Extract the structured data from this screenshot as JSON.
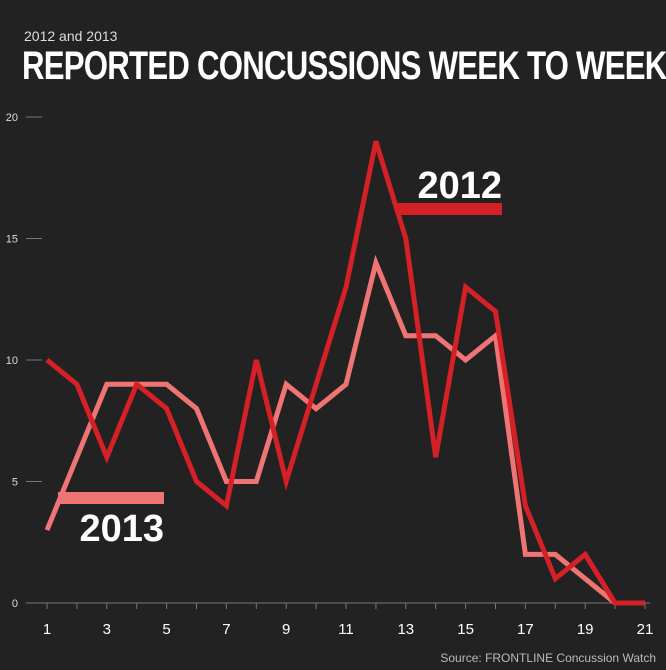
{
  "chart_data": {
    "type": "line",
    "subtitle": "2012 and 2013",
    "title": "REPORTED CONCUSSIONS WEEK TO WEEK",
    "source": "Source: FRONTLINE Concussion Watch",
    "xlabel": "",
    "ylabel": "",
    "xlim": [
      1,
      21
    ],
    "ylim": [
      0,
      20
    ],
    "x_ticks": [
      1,
      3,
      5,
      7,
      9,
      11,
      13,
      15,
      17,
      19,
      21
    ],
    "y_ticks": [
      0,
      5,
      10,
      15,
      20
    ],
    "series": [
      {
        "name": "2012",
        "color": "#d42027",
        "x": [
          1,
          2,
          3,
          4,
          5,
          6,
          7,
          8,
          9,
          10,
          11,
          12,
          13,
          14,
          15,
          16,
          17,
          18,
          19,
          20,
          21
        ],
        "values": [
          10,
          9,
          6,
          9,
          8,
          5,
          4,
          10,
          5,
          9,
          13,
          19,
          15,
          6,
          13,
          12,
          4,
          1,
          2,
          0,
          0
        ]
      },
      {
        "name": "2013",
        "color": "#ef7474",
        "x": [
          1,
          2,
          3,
          4,
          5,
          6,
          7,
          8,
          9,
          10,
          11,
          12,
          13,
          14,
          15,
          16,
          17,
          18,
          19,
          20
        ],
        "values": [
          3,
          6,
          9,
          9,
          9,
          8,
          5,
          5,
          9,
          8,
          9,
          14,
          11,
          11,
          10,
          11,
          2,
          2,
          1,
          0
        ]
      }
    ],
    "legend": "inline labels"
  }
}
